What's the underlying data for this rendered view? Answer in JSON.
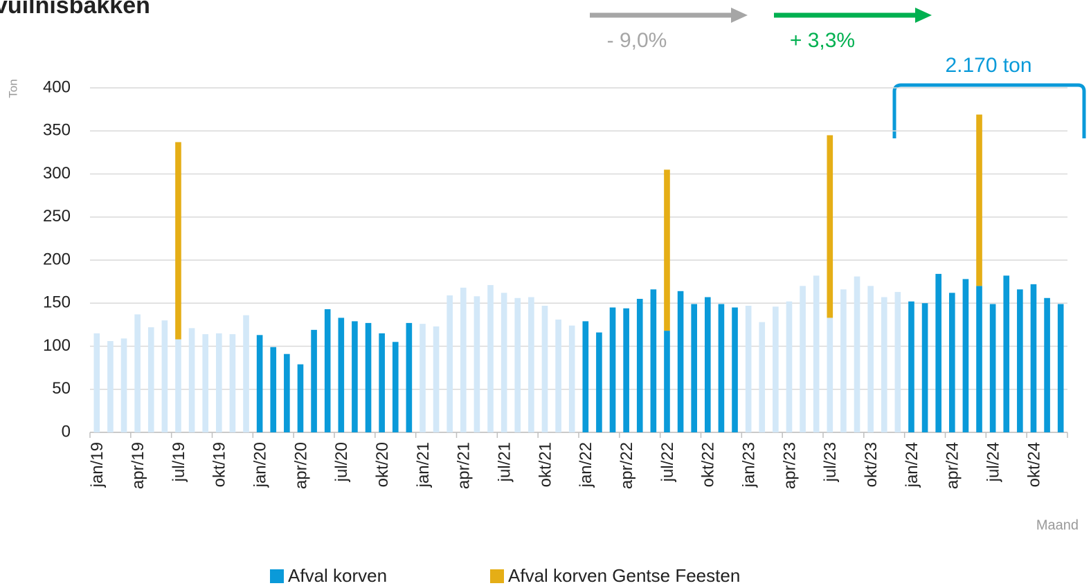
{
  "chart_data": {
    "type": "stacked_bar",
    "title": "vuilnisbakken",
    "y_label": "Ton",
    "x_label": "Maand",
    "annotations": [
      "- 9,0%",
      "+ 3,3%",
      "2.170 ton"
    ],
    "categories": [
      "jan/19",
      null,
      null,
      "apr/19",
      null,
      null,
      "jul/19",
      null,
      null,
      "okt/19",
      null,
      null,
      "jan/20",
      null,
      null,
      "apr/20",
      null,
      null,
      "jul/20",
      null,
      null,
      "okt/20",
      null,
      null,
      "jan/21",
      null,
      null,
      "apr/21",
      null,
      null,
      "jul/21",
      null,
      null,
      "okt/21",
      null,
      null,
      "jan/22",
      null,
      null,
      "apr/22",
      null,
      null,
      "jul/22",
      null,
      null,
      "okt/22",
      null,
      null,
      "jan/23",
      null,
      null,
      "apr/23",
      null,
      null,
      "jul/23",
      null,
      null,
      "okt/23",
      null,
      null,
      "jan/24",
      null,
      null,
      "apr/24",
      null,
      null,
      "jul/24",
      null,
      null,
      "okt/24",
      null,
      null
    ],
    "series": [
      {
        "name": "Afval korven",
        "color": "#0a9ad9",
        "colors": [
          "#d3e8f8",
          "#d3e8f8",
          "#d3e8f8",
          "#d3e8f8",
          "#d3e8f8",
          "#d3e8f8",
          "#d3e8f8",
          "#d3e8f8",
          "#d3e8f8",
          "#d3e8f8",
          "#d3e8f8",
          "#d3e8f8",
          "#0a9ad9",
          "#0a9ad9",
          "#0a9ad9",
          "#0a9ad9",
          "#0a9ad9",
          "#0a9ad9",
          "#0a9ad9",
          "#0a9ad9",
          "#0a9ad9",
          "#0a9ad9",
          "#0a9ad9",
          "#0a9ad9",
          "#d3e8f8",
          "#d3e8f8",
          "#d3e8f8",
          "#d3e8f8",
          "#d3e8f8",
          "#d3e8f8",
          "#d3e8f8",
          "#d3e8f8",
          "#d3e8f8",
          "#d3e8f8",
          "#d3e8f8",
          "#d3e8f8",
          "#0a9ad9",
          "#0a9ad9",
          "#0a9ad9",
          "#0a9ad9",
          "#0a9ad9",
          "#0a9ad9",
          "#0a9ad9",
          "#0a9ad9",
          "#0a9ad9",
          "#0a9ad9",
          "#0a9ad9",
          "#0a9ad9",
          "#d3e8f8",
          "#d3e8f8",
          "#d3e8f8",
          "#d3e8f8",
          "#d3e8f8",
          "#d3e8f8",
          "#d3e8f8",
          "#d3e8f8",
          "#d3e8f8",
          "#d3e8f8",
          "#d3e8f8",
          "#d3e8f8",
          "#0a9ad9",
          "#0a9ad9",
          "#0a9ad9",
          "#0a9ad9",
          "#0a9ad9",
          "#0a9ad9",
          "#0a9ad9",
          "#0a9ad9",
          "#0a9ad9",
          "#0a9ad9",
          "#0a9ad9",
          "#0a9ad9"
        ],
        "values": [
          115,
          106,
          109,
          137,
          122,
          130,
          108,
          121,
          114,
          115,
          114,
          136,
          113,
          99,
          91,
          79,
          119,
          143,
          133,
          129,
          127,
          115,
          105,
          127,
          126,
          123,
          159,
          168,
          158,
          171,
          162,
          156,
          157,
          147,
          131,
          124,
          129,
          116,
          145,
          144,
          155,
          166,
          118,
          164,
          149,
          157,
          149,
          145,
          147,
          128,
          146,
          152,
          170,
          182,
          133,
          166,
          181,
          170,
          157,
          163,
          152,
          150,
          184,
          162,
          178,
          170,
          149,
          182,
          166,
          172,
          156,
          149
        ]
      },
      {
        "name": "Afval korven Gentse Feesten",
        "color": "#e5ae16",
        "values": [
          null,
          null,
          null,
          null,
          null,
          null,
          229,
          null,
          null,
          null,
          null,
          null,
          null,
          null,
          null,
          null,
          null,
          null,
          null,
          null,
          null,
          null,
          null,
          null,
          null,
          null,
          null,
          null,
          null,
          null,
          null,
          null,
          null,
          null,
          null,
          null,
          null,
          null,
          null,
          null,
          null,
          null,
          187,
          null,
          null,
          null,
          null,
          null,
          null,
          null,
          null,
          null,
          null,
          null,
          212,
          null,
          null,
          null,
          null,
          null,
          null,
          null,
          null,
          null,
          null,
          199,
          null,
          null,
          null,
          null,
          null,
          null
        ]
      }
    ],
    "ylim": [
      0,
      400
    ],
    "yticks": [
      0,
      50,
      100,
      150,
      200,
      250,
      300,
      350,
      400
    ],
    "grid": true,
    "legend": "bottom"
  }
}
